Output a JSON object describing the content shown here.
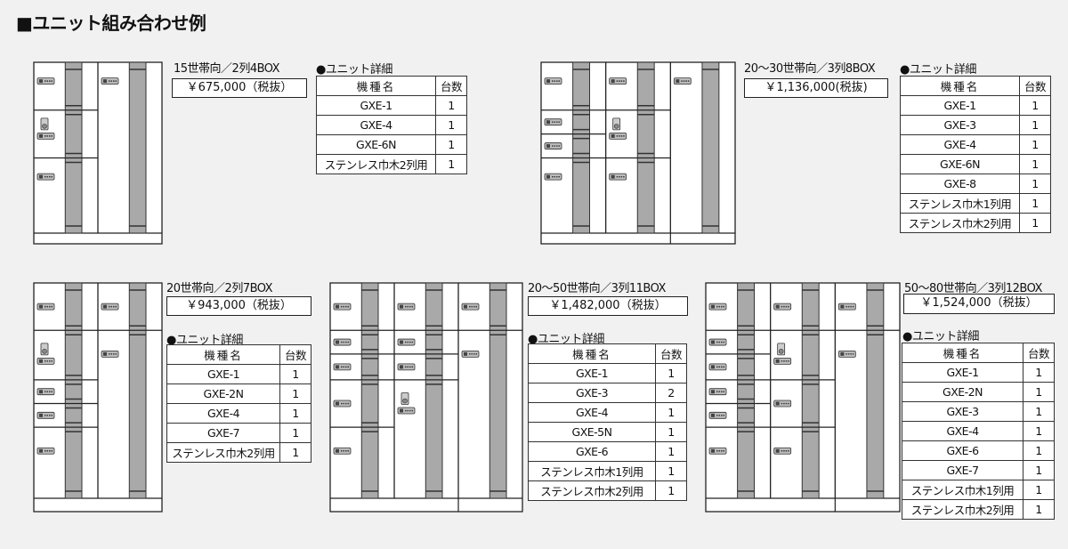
{
  "heading": "■ユニット組み合わせ例",
  "table_headers": {
    "model": "機種名",
    "qty": "台数"
  },
  "detail_label": "●ユニット詳細",
  "colors": {
    "background": "#f1f1f1",
    "post": "#a9a9a9",
    "line": "#222222"
  },
  "combos": [
    {
      "title": "15世帯向／2列4BOX",
      "price": "￥675,000（税抜）",
      "units": [
        {
          "model": "GXE-1",
          "qty": "1"
        },
        {
          "model": "GXE-4",
          "qty": "1"
        },
        {
          "model": "GXE-6N",
          "qty": "1"
        },
        {
          "model": "ステンレス巾木2列用",
          "qty": "1"
        }
      ]
    },
    {
      "title": "20～30世帯向／3列8BOX",
      "price": "￥1,136,000(税抜)",
      "units": [
        {
          "model": "GXE-1",
          "qty": "1"
        },
        {
          "model": "GXE-3",
          "qty": "1"
        },
        {
          "model": "GXE-4",
          "qty": "1"
        },
        {
          "model": "GXE-6N",
          "qty": "1"
        },
        {
          "model": "GXE-8",
          "qty": "1"
        },
        {
          "model": "ステンレス巾木1列用",
          "qty": "1"
        },
        {
          "model": "ステンレス巾木2列用",
          "qty": "1"
        }
      ]
    },
    {
      "title": "20世帯向／2列7BOX",
      "price": "￥943,000（税抜）",
      "units": [
        {
          "model": "GXE-1",
          "qty": "1"
        },
        {
          "model": "GXE-2N",
          "qty": "1"
        },
        {
          "model": "GXE-4",
          "qty": "1"
        },
        {
          "model": "GXE-7",
          "qty": "1"
        },
        {
          "model": "ステンレス巾木2列用",
          "qty": "1"
        }
      ]
    },
    {
      "title": "20～50世帯向／3列11BOX",
      "price": "￥1,482,000（税抜）",
      "units": [
        {
          "model": "GXE-1",
          "qty": "1"
        },
        {
          "model": "GXE-3",
          "qty": "2"
        },
        {
          "model": "GXE-4",
          "qty": "1"
        },
        {
          "model": "GXE-5N",
          "qty": "1"
        },
        {
          "model": "GXE-6",
          "qty": "1"
        },
        {
          "model": "ステンレス巾木1列用",
          "qty": "1"
        },
        {
          "model": "ステンレス巾木2列用",
          "qty": "1"
        }
      ]
    },
    {
      "title": "50～80世帯向／3列12BOX",
      "price": "￥1,524,000（税抜）",
      "units": [
        {
          "model": "GXE-1",
          "qty": "1"
        },
        {
          "model": "GXE-2N",
          "qty": "1"
        },
        {
          "model": "GXE-3",
          "qty": "1"
        },
        {
          "model": "GXE-4",
          "qty": "1"
        },
        {
          "model": "GXE-6",
          "qty": "1"
        },
        {
          "model": "GXE-7",
          "qty": "1"
        },
        {
          "model": "ステンレス巾木1列用",
          "qty": "1"
        },
        {
          "model": "ステンレス巾木2列用",
          "qty": "1"
        }
      ]
    }
  ]
}
